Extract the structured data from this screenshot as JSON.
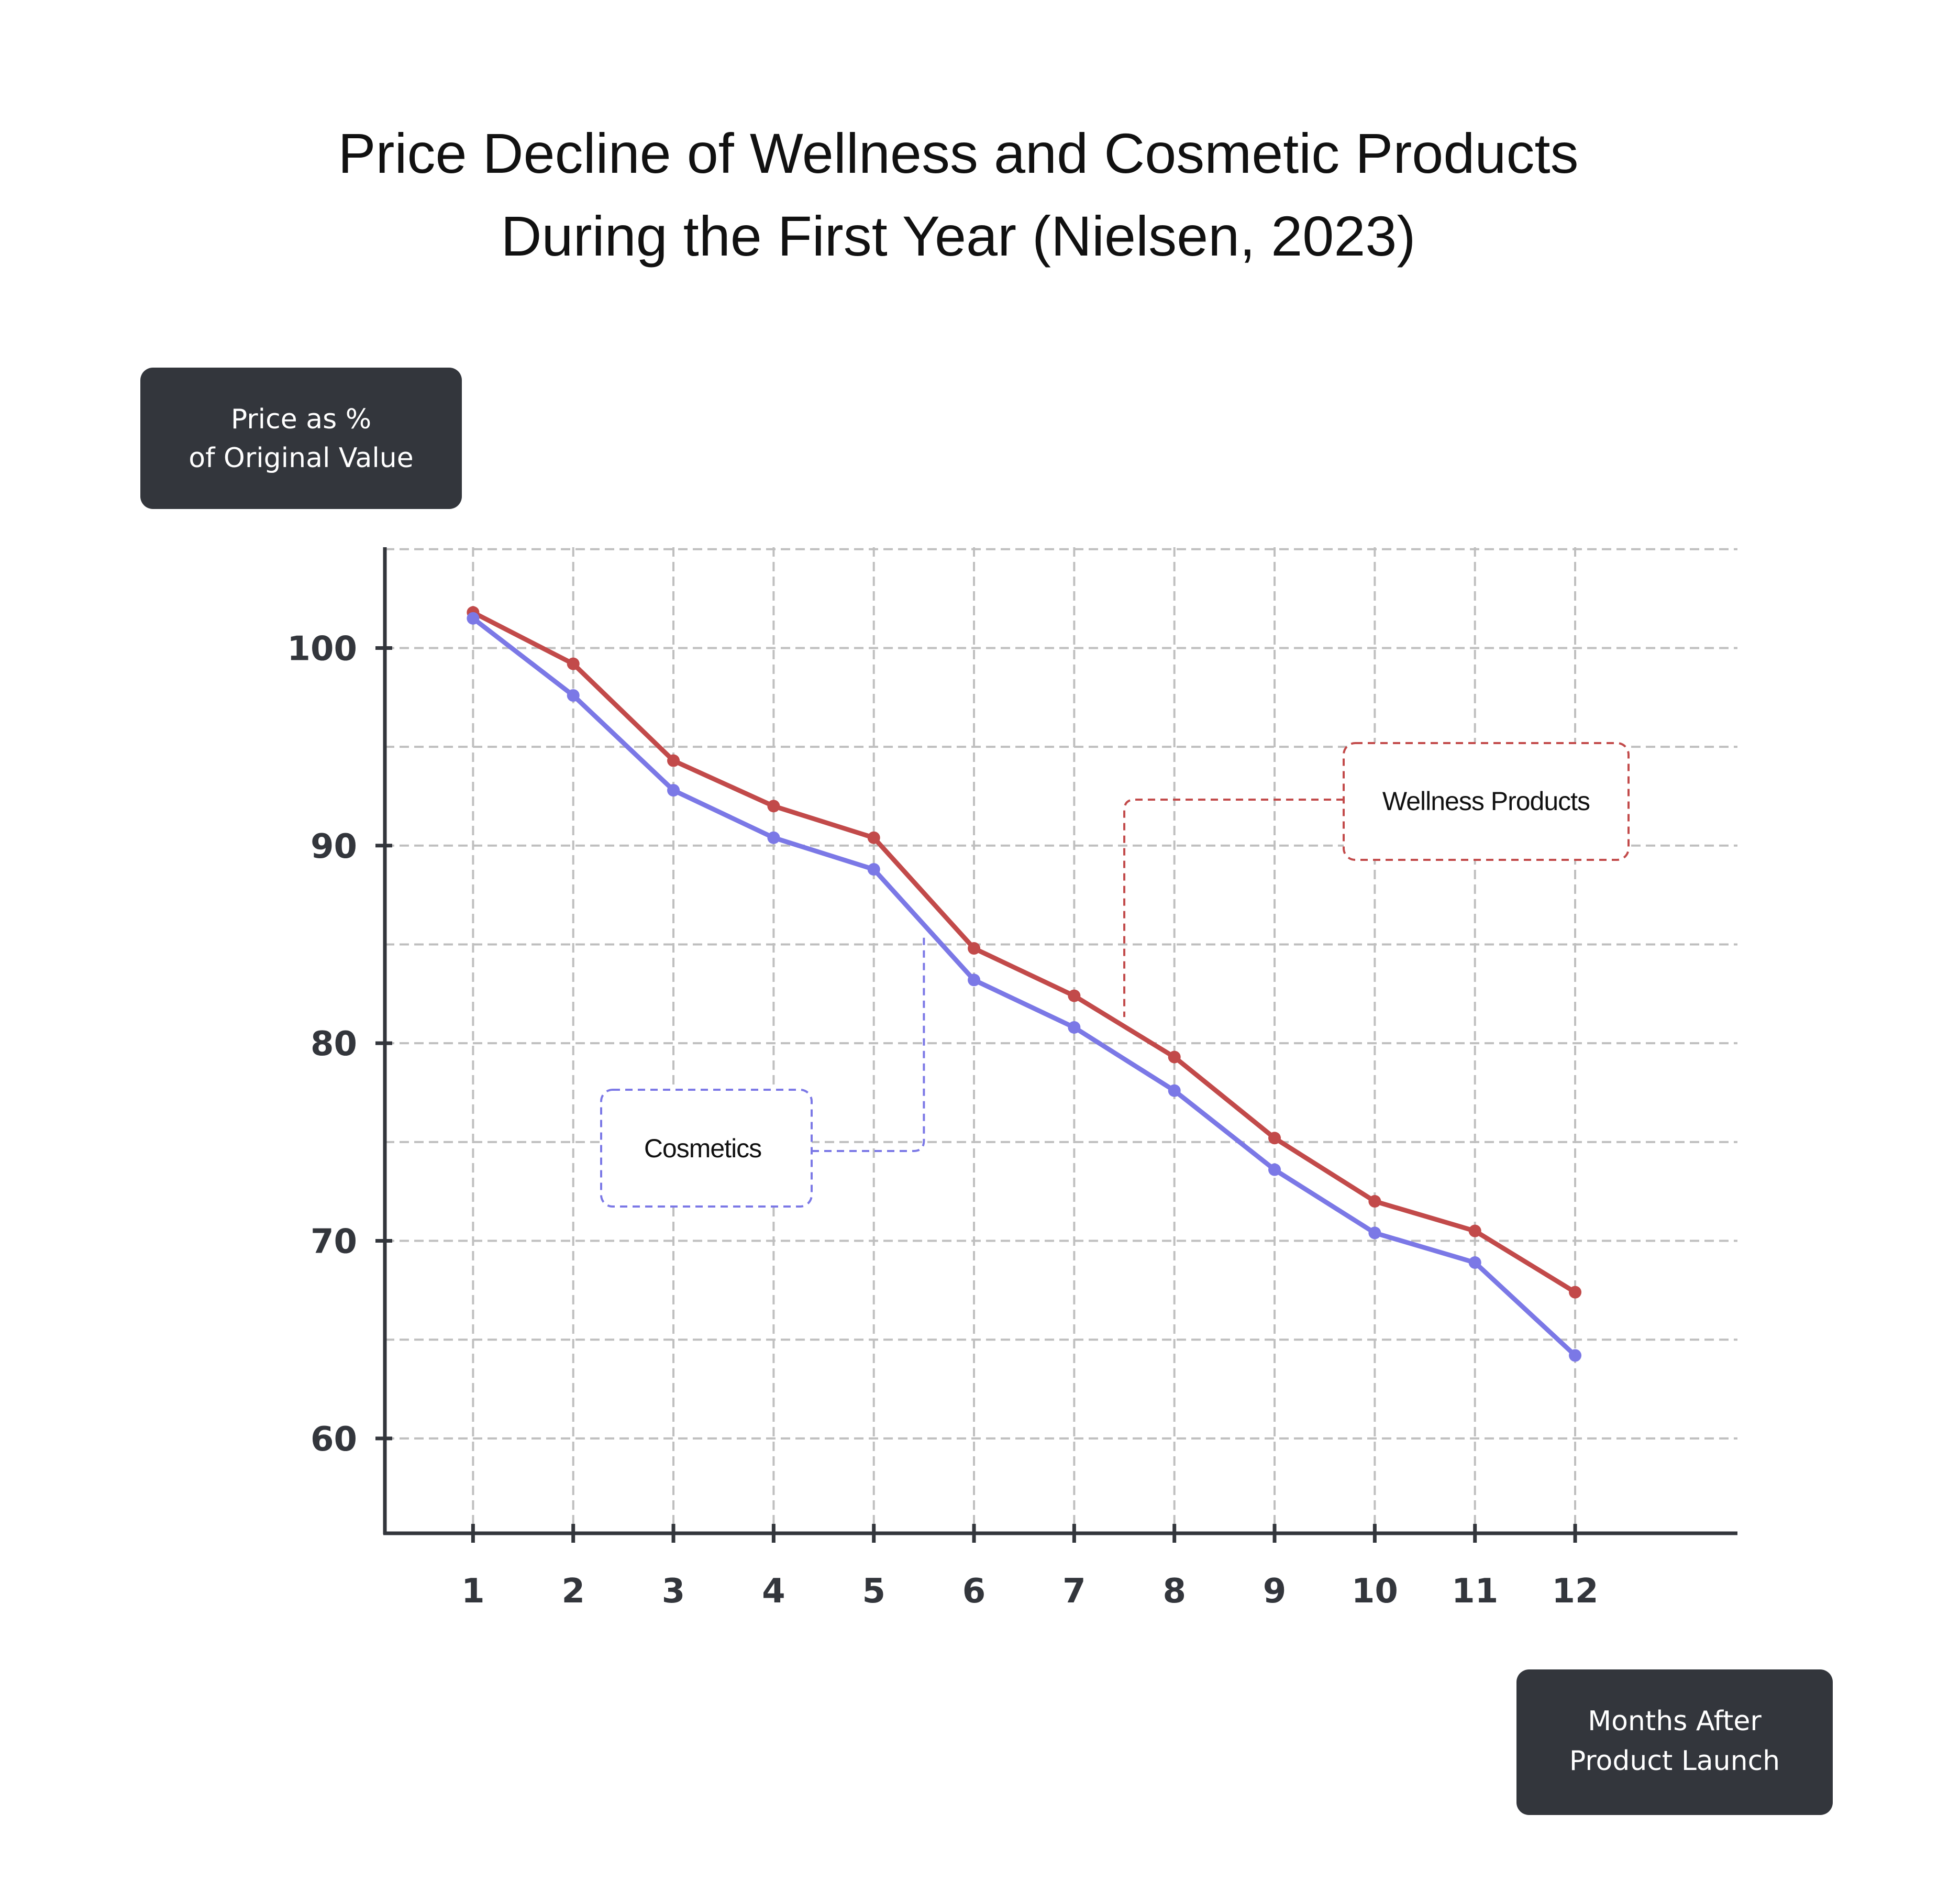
{
  "chart_data": {
    "type": "line",
    "title": [
      "Price Decline of Wellness and Cosmetic Products",
      "During the First Year (Nielsen, 2023)"
    ],
    "ylabel": [
      "Price as %",
      "of Original Value"
    ],
    "xlabel": [
      "Months After",
      "Product Launch"
    ],
    "x": [
      1,
      2,
      3,
      4,
      5,
      6,
      7,
      8,
      9,
      10,
      11,
      12
    ],
    "xticks": [
      "1",
      "2",
      "3",
      "4",
      "5",
      "6",
      "7",
      "8",
      "9",
      "10",
      "11",
      "12"
    ],
    "yticks": [
      "60",
      "70",
      "80",
      "90",
      "100"
    ],
    "ytick_values": [
      60,
      70,
      80,
      90,
      100
    ],
    "ylim": [
      55.2,
      105.1
    ],
    "xlim": [
      0.12,
      13.62
    ],
    "grid": true,
    "series": [
      {
        "name": "Wellness Products",
        "color": "#c24a4a",
        "values": [
          101.8,
          99.2,
          94.3,
          92.0,
          90.4,
          84.8,
          82.4,
          79.3,
          75.2,
          72.0,
          70.5,
          67.4
        ]
      },
      {
        "name": "Cosmetics",
        "color": "#7b78e6",
        "values": [
          101.5,
          97.6,
          92.8,
          90.4,
          88.8,
          83.2,
          80.8,
          77.6,
          73.6,
          70.4,
          68.9,
          64.2
        ]
      }
    ],
    "annotations": [
      {
        "text": "Wellness Products",
        "series": "Wellness Products"
      },
      {
        "text": "Cosmetics",
        "series": "Cosmetics"
      }
    ]
  }
}
